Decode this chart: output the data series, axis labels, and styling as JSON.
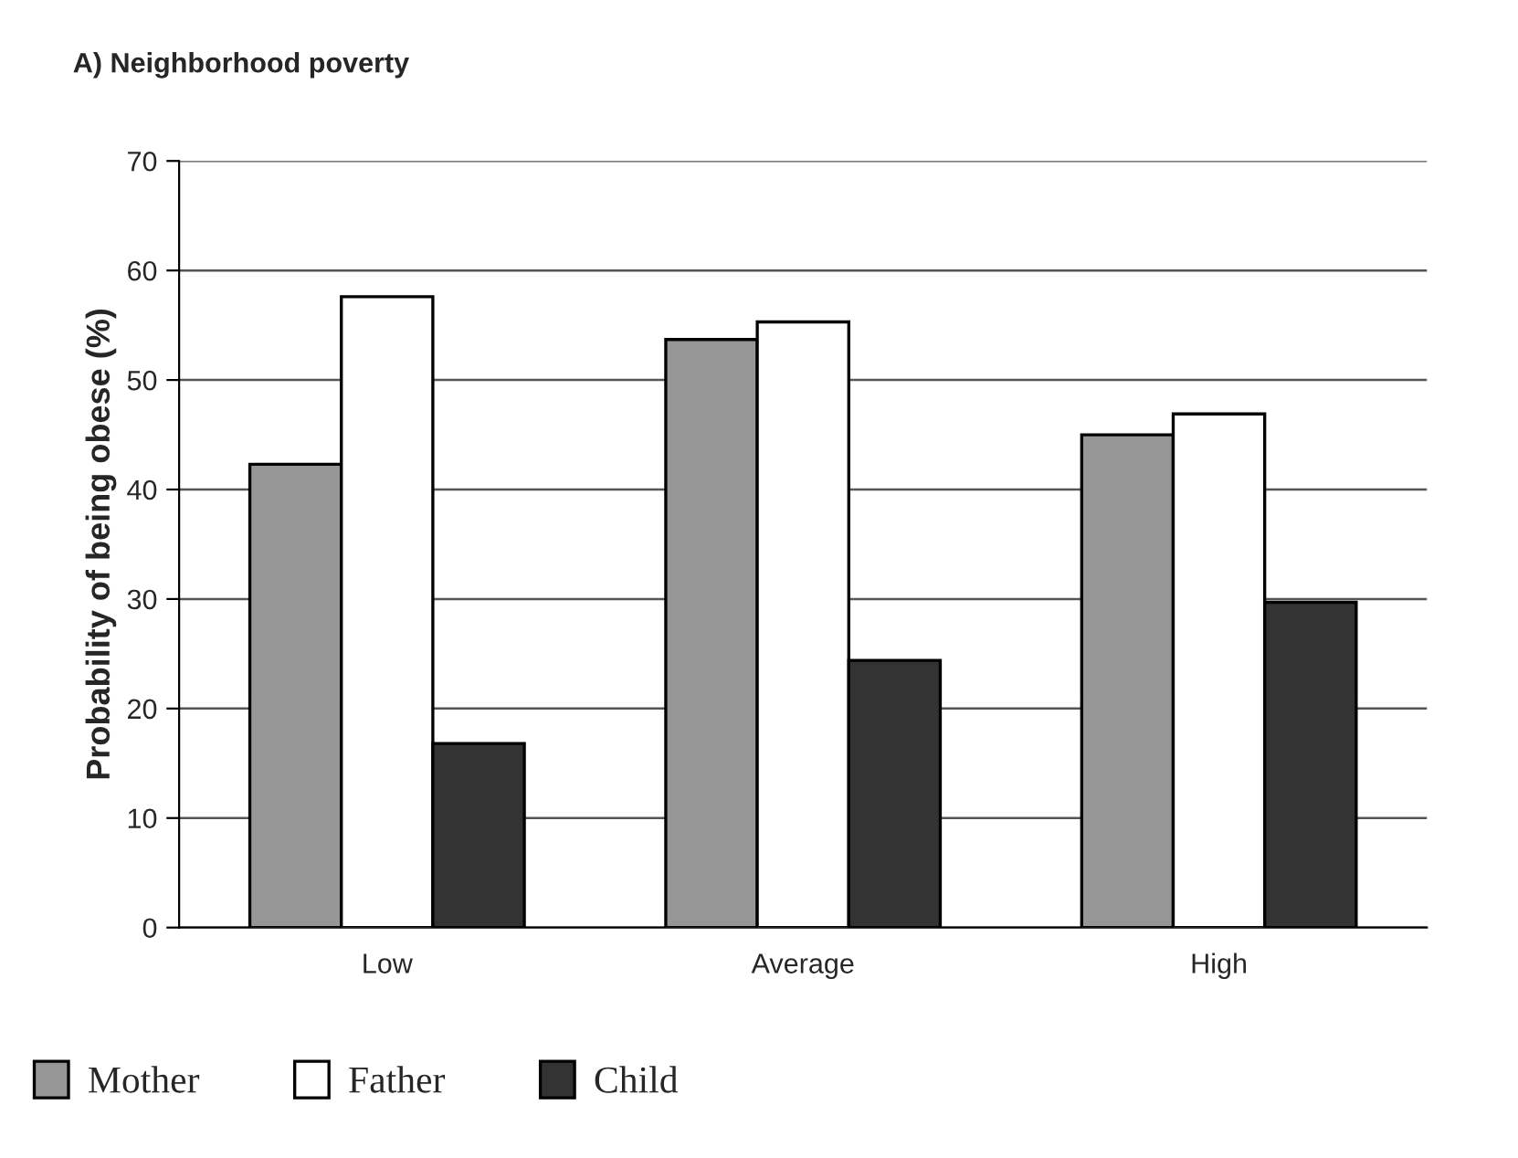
{
  "chart_data": {
    "type": "bar",
    "title": "A) Neighborhood poverty",
    "ylabel": "Probability of being obese (%)",
    "categories": [
      "Low",
      "Average",
      "High"
    ],
    "series": [
      {
        "name": "Mother",
        "color": "#969696",
        "values": [
          42.3,
          53.7,
          45.0
        ]
      },
      {
        "name": "Father",
        "color": "#ffffff",
        "values": [
          57.6,
          55.3,
          46.9
        ]
      },
      {
        "name": "Child",
        "color": "#333333",
        "values": [
          16.8,
          24.4,
          29.7
        ]
      }
    ],
    "ylim": [
      0,
      70
    ],
    "yticks": [
      0,
      10,
      20,
      30,
      40,
      50,
      60,
      70
    ],
    "grid": "y",
    "legend": "bottom left"
  }
}
